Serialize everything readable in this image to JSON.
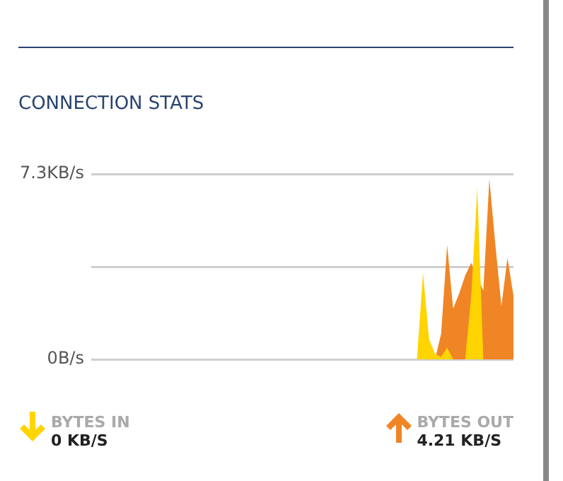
{
  "chart_data": {
    "type": "area",
    "title": "CONNECTION STATS",
    "categories": [
      null,
      null,
      null,
      null,
      null,
      null,
      null,
      null,
      null,
      null,
      null,
      null,
      null,
      null,
      null,
      null,
      null,
      null,
      null,
      null,
      null,
      null,
      null,
      null,
      null,
      null,
      null,
      null,
      null,
      null,
      null,
      null,
      null,
      null,
      null,
      null,
      null,
      null,
      null,
      null,
      null,
      null,
      null,
      null,
      null,
      null,
      null,
      null,
      null,
      null,
      null,
      null,
      null,
      null,
      null,
      null,
      null,
      null,
      null,
      null,
      null,
      null,
      null,
      null,
      null,
      null,
      null,
      null,
      null,
      null,
      null
    ],
    "series": [
      {
        "name": "BYTES IN",
        "color": "#ffd400",
        "values": [
          0,
          0,
          0,
          0,
          0,
          0,
          0,
          0,
          0,
          0,
          0,
          0,
          0,
          0,
          0,
          0,
          0,
          0,
          0,
          0,
          0,
          0,
          0,
          0,
          0,
          0,
          0,
          0,
          0,
          0,
          0,
          0,
          0,
          0,
          0,
          0,
          0,
          0,
          0,
          0,
          0,
          0,
          0,
          0,
          0,
          0,
          0,
          0,
          0,
          0,
          0,
          0,
          0,
          0,
          0,
          3.4,
          0.8,
          0.2,
          0.1,
          0.45,
          0,
          0,
          0,
          2.5,
          6.75,
          0,
          0,
          0,
          0,
          0,
          0
        ]
      },
      {
        "name": "BYTES OUT",
        "color": "#f08526",
        "values": [
          0,
          0,
          0,
          0,
          0,
          0,
          0,
          0,
          0,
          0,
          0,
          0,
          0,
          0,
          0,
          0,
          0,
          0,
          0,
          0,
          0,
          0,
          0,
          0,
          0,
          0,
          0,
          0,
          0,
          0,
          0,
          0,
          0,
          0,
          0,
          0,
          0,
          0,
          0,
          0,
          0,
          0,
          0,
          0,
          0,
          0,
          0,
          0,
          0,
          0,
          0,
          0,
          0,
          0,
          0,
          0,
          0,
          0,
          1.0,
          4.5,
          2.0,
          2.6,
          3.3,
          3.8,
          null,
          2.7,
          7.1,
          4.5,
          2.1,
          4.0,
          2.5
        ]
      }
    ],
    "annotations": [
      "0 KB/S",
      "4.21 KB/S"
    ],
    "ylim": [
      0,
      7.3
    ],
    "yticks": [
      {
        "value": 0,
        "label": "0B/s"
      },
      {
        "value": 3.65,
        "label": null
      },
      {
        "value": 7.3,
        "label": "7.3KB/s"
      }
    ],
    "grid": "y",
    "legend": "bottom",
    "tick_labels": "y"
  }
}
